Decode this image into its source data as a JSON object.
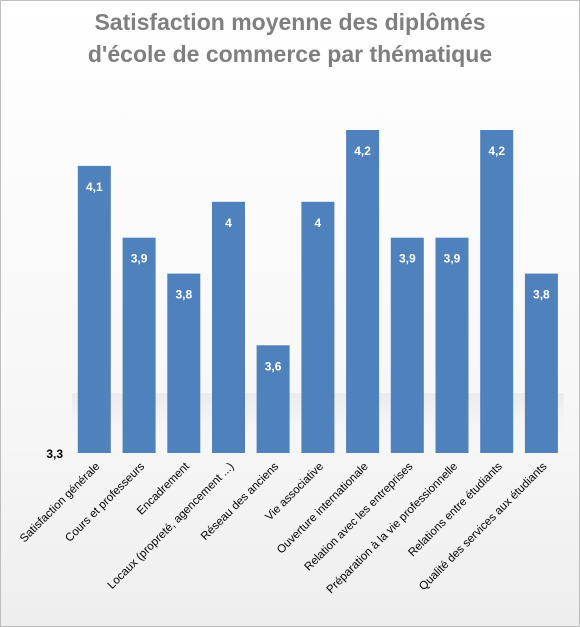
{
  "chart_data": {
    "type": "bar",
    "title_line1": "Satisfaction moyenne des diplômés",
    "title_line2": "d'école de commerce par thématique",
    "categories": [
      "Satisfaction générale",
      "Cours et professeurs",
      "Encadrement",
      "Locaux (propreté, agencement ...)",
      "Réseau des anciens",
      "Vie associative",
      "Ouverture internationale",
      "Relation avec les entreprises",
      "Préparation à la vie professionnelle",
      "Relations entre étudiants",
      "Qualité des services aux étudiants"
    ],
    "values": [
      4.1,
      3.9,
      3.8,
      4.0,
      3.6,
      4.0,
      4.2,
      3.9,
      3.9,
      4.2,
      3.8
    ],
    "value_labels": [
      "4,1",
      "3,9",
      "3,8",
      "4",
      "3,6",
      "4",
      "4,2",
      "3,9",
      "3,9",
      "4,2",
      "3,8"
    ],
    "y_axis_label": "3,3",
    "ylim": [
      3.3,
      4.2
    ],
    "grid": false,
    "legend": "none",
    "colors": {
      "bar": "#4f81bd",
      "title": "#7f7f7f",
      "value_label": "#ffffff",
      "axis_text": "#000000"
    }
  }
}
